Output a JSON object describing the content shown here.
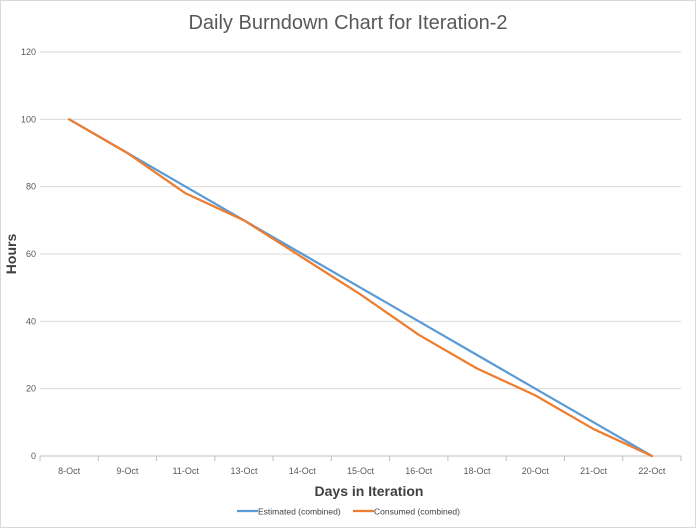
{
  "chart_data": {
    "type": "line",
    "title": "Daily Burndown Chart for Iteration-2",
    "xlabel": "Days in Iteration",
    "ylabel": "Hours",
    "categories": [
      "8-Oct",
      "9-Oct",
      "11-Oct",
      "13-Oct",
      "14-Oct",
      "15-Oct",
      "16-Oct",
      "18-Oct",
      "20-Oct",
      "21-Oct",
      "22-Oct"
    ],
    "ylim": [
      0,
      120
    ],
    "yticks": [
      "0",
      "20",
      "40",
      "60",
      "80",
      "100",
      "120"
    ],
    "grid": true,
    "legend_position": "bottom",
    "series": [
      {
        "name": "Estimated (combined)",
        "color": "#5b9bd5",
        "values": [
          100,
          90,
          80,
          70,
          60,
          50,
          40,
          30,
          20,
          10,
          0
        ]
      },
      {
        "name": "Consumed (combined)",
        "color": "#ed7d31",
        "values": [
          100,
          90,
          78,
          70,
          59,
          48,
          36,
          26,
          18,
          8,
          0
        ]
      }
    ]
  }
}
